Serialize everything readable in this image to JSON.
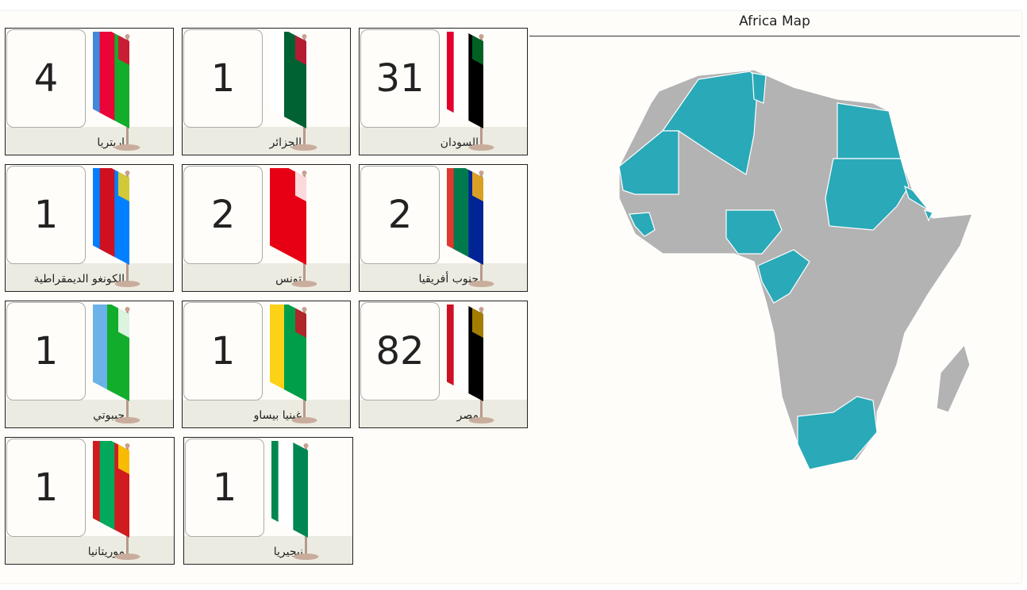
{
  "map": {
    "title": "Africa Map",
    "highlight_color": "#2aa9b8",
    "base_color": "#b3b3b3"
  },
  "cards": [
    {
      "name": "السودان",
      "count": "31",
      "flag": [
        "#000000",
        "#ffffff",
        "#e4002b"
      ],
      "hoist": "#007229"
    },
    {
      "name": "الجزائر",
      "count": "1",
      "flag": [
        "#006233",
        "#ffffff"
      ],
      "hoist": "#d21034"
    },
    {
      "name": "إريتريا",
      "count": "4",
      "flag": [
        "#12ad2b",
        "#ea0437",
        "#4189dd"
      ],
      "hoist": "#ea0437"
    },
    {
      "name": "جنوب أفريقيا",
      "count": "2",
      "flag": [
        "#002395",
        "#007a4d",
        "#de3831"
      ],
      "hoist": "#ffb612"
    },
    {
      "name": "تونس",
      "count": "2",
      "flag": [
        "#e70013"
      ],
      "hoist": "#ffffff"
    },
    {
      "name": "الكونغو الديمقراطية",
      "count": "1",
      "flag": [
        "#007fff",
        "#ce1021",
        "#007fff"
      ],
      "hoist": "#f7d618"
    },
    {
      "name": "مصر",
      "count": "82",
      "flag": [
        "#000000",
        "#ffffff",
        "#ce1126"
      ],
      "hoist": "#c09300"
    },
    {
      "name": "غينيا بيساو",
      "count": "1",
      "flag": [
        "#009e49",
        "#fcd116"
      ],
      "hoist": "#ce1126"
    },
    {
      "name": "جيبوتي",
      "count": "1",
      "flag": [
        "#12ad2b",
        "#6ab2e7"
      ],
      "hoist": "#ffffff"
    },
    {
      "name": "موريتانيا",
      "count": "1",
      "flag": [
        "#d01c1f",
        "#00a95c",
        "#d01c1f"
      ],
      "hoist": "#ffd700"
    },
    {
      "name": "نيجيريا",
      "count": "1",
      "flag": [
        "#008751",
        "#ffffff",
        "#008751"
      ],
      "hoist": "#008751"
    }
  ]
}
